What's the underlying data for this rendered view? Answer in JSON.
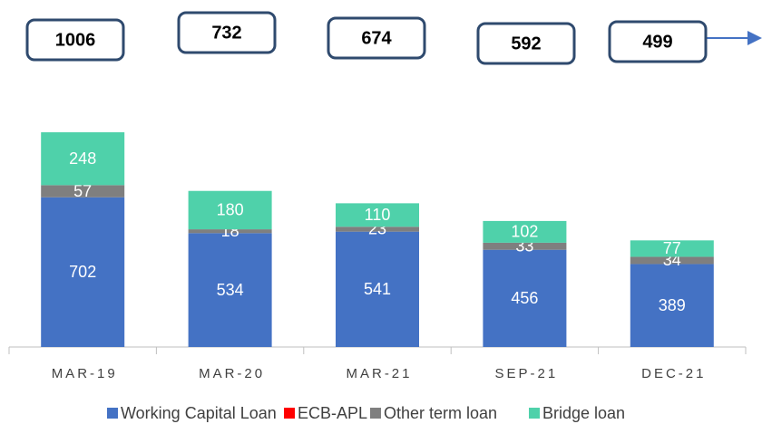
{
  "chart_data": {
    "type": "stacked_bar",
    "categories": [
      "MAR-19",
      "MAR-20",
      "MAR-21",
      "SEP-21",
      "DEC-21"
    ],
    "totals": [
      1006,
      732,
      674,
      592,
      499
    ],
    "series": [
      {
        "name": "Working Capital Loan",
        "color": "#4472c4",
        "values": [
          702,
          534,
          541,
          456,
          389
        ]
      },
      {
        "name": "ECB-APL",
        "color": "#ff0000",
        "values": [
          0,
          0,
          0,
          0,
          0
        ]
      },
      {
        "name": "Other term loan",
        "color": "#7f7f7f",
        "values": [
          57,
          18,
          23,
          33,
          34
        ]
      },
      {
        "name": "Bridge loan",
        "color": "#4fd1aa",
        "values": [
          248,
          180,
          110,
          102,
          77
        ]
      }
    ],
    "legend": "bottom"
  }
}
